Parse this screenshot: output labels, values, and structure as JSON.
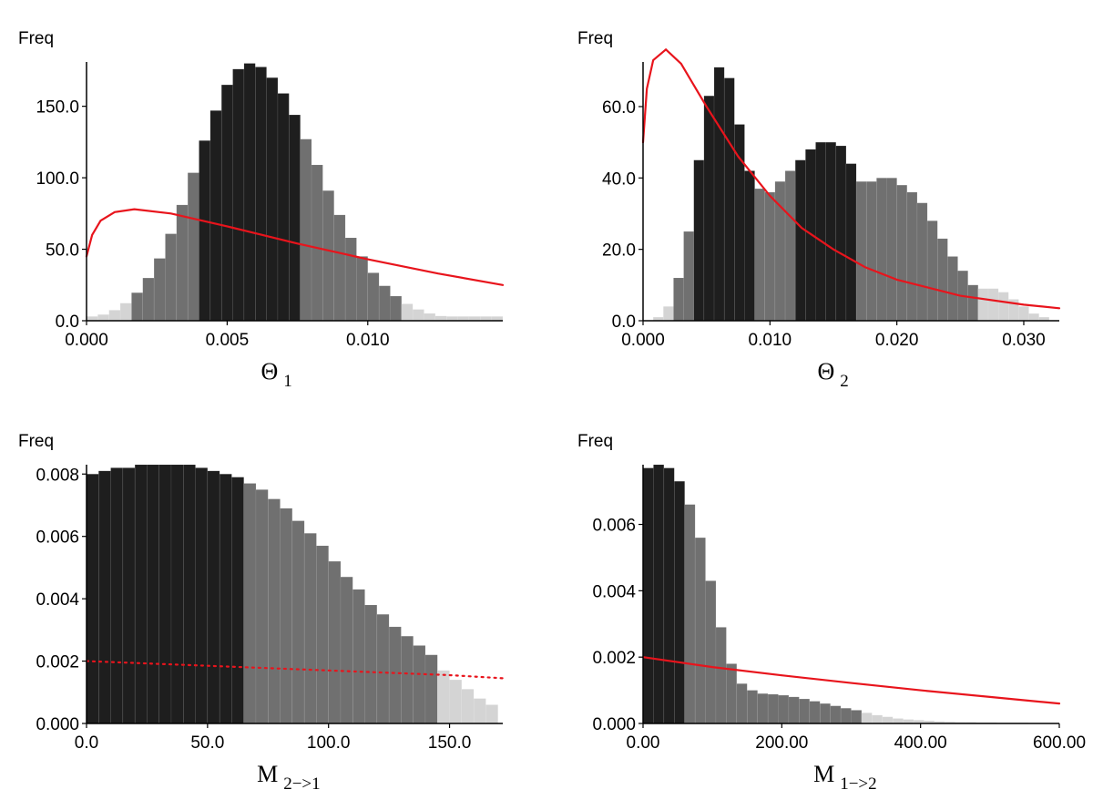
{
  "chart_data": [
    {
      "type": "histogram",
      "ylabel": "Freq",
      "xlabel": "Θ",
      "xlabel_sub": "1",
      "xlim": [
        0,
        0.0148
      ],
      "ylim": [
        0,
        181
      ],
      "xticks": [
        {
          "value": 0,
          "label": "0.000"
        },
        {
          "value": 0.005,
          "label": "0.005"
        },
        {
          "value": 0.01,
          "label": "0.010"
        }
      ],
      "yticks": [
        {
          "value": 0,
          "label": "0.0"
        },
        {
          "value": 50,
          "label": "50.0"
        },
        {
          "value": 100,
          "label": "100.0"
        },
        {
          "value": 150,
          "label": "150.0"
        }
      ],
      "bins": [
        0,
        0.0004,
        0.0008,
        0.0012,
        0.0016,
        0.002,
        0.0024,
        0.0028,
        0.0032,
        0.0036,
        0.004,
        0.0044,
        0.0048,
        0.0052,
        0.0056,
        0.006,
        0.0064,
        0.0068,
        0.0072,
        0.0076,
        0.008,
        0.0084,
        0.0088,
        0.0092,
        0.0096,
        0.01,
        0.0104,
        0.0108,
        0.0112,
        0.0116,
        0.012,
        0.0124,
        0.0128,
        0.0132,
        0.0136,
        0.014,
        0.0144,
        0.0148
      ],
      "values": [
        3,
        4.3,
        7.4,
        12.3,
        19.6,
        29.9,
        43.6,
        60.8,
        81,
        103.5,
        126,
        147,
        165,
        176,
        180,
        177.5,
        170,
        159,
        144,
        127,
        109,
        91,
        74,
        58,
        45,
        33.5,
        24.4,
        17.2,
        11.8,
        7.9,
        5.1,
        3.3,
        3,
        3,
        3,
        3,
        3
      ],
      "bar_colors": [
        "#d4d4d4",
        "#d4d4d4",
        "#d4d4d4",
        "#d4d4d4",
        "#707070",
        "#707070",
        "#707070",
        "#707070",
        "#707070",
        "#707070",
        "#1e1e1e",
        "#1e1e1e",
        "#1e1e1e",
        "#1e1e1e",
        "#1e1e1e",
        "#1e1e1e",
        "#1e1e1e",
        "#1e1e1e",
        "#1e1e1e",
        "#707070",
        "#707070",
        "#707070",
        "#707070",
        "#707070",
        "#707070",
        "#707070",
        "#707070",
        "#707070",
        "#d4d4d4",
        "#d4d4d4",
        "#d4d4d4",
        "#d4d4d4",
        "#d4d4d4",
        "#d4d4d4",
        "#d4d4d4",
        "#d4d4d4",
        "#d4d4d4"
      ],
      "curve": {
        "color": "#e8141c",
        "style": "solid",
        "x": [
          0,
          0.0002,
          0.0005,
          0.001,
          0.0017,
          0.003,
          0.005,
          0.0075,
          0.01,
          0.0125,
          0.0148
        ],
        "values": [
          45,
          60,
          70,
          76,
          78,
          75,
          66,
          54,
          43,
          33,
          25
        ]
      }
    },
    {
      "type": "histogram",
      "ylabel": "Freq",
      "xlabel": "Θ",
      "xlabel_sub": "2",
      "xlim": [
        0,
        0.0328
      ],
      "ylim": [
        0,
        72.5
      ],
      "xticks": [
        {
          "value": 0,
          "label": "0.000"
        },
        {
          "value": 0.01,
          "label": "0.010"
        },
        {
          "value": 0.02,
          "label": "0.020"
        },
        {
          "value": 0.03,
          "label": "0.030"
        }
      ],
      "yticks": [
        {
          "value": 0,
          "label": "0.0"
        },
        {
          "value": 20,
          "label": "20.0"
        },
        {
          "value": 40,
          "label": "40.0"
        },
        {
          "value": 60,
          "label": "60.0"
        }
      ],
      "bins": [
        0,
        0.0008,
        0.0016,
        0.0024,
        0.0032,
        0.004,
        0.0048,
        0.0056,
        0.0064,
        0.0072,
        0.008,
        0.0088,
        0.0096,
        0.0104,
        0.0112,
        0.012,
        0.0128,
        0.0136,
        0.0144,
        0.0152,
        0.016,
        0.0168,
        0.0176,
        0.0184,
        0.0192,
        0.02,
        0.0208,
        0.0216,
        0.0224,
        0.0232,
        0.024,
        0.0248,
        0.0256,
        0.0264,
        0.0272,
        0.028,
        0.0288,
        0.0296,
        0.0304,
        0.0312,
        0.032,
        0.0328
      ],
      "values": [
        0,
        1,
        4,
        12,
        25,
        45,
        63,
        71,
        68,
        55,
        42,
        37,
        36,
        39,
        42,
        45,
        48,
        50,
        50,
        49,
        44,
        39,
        39,
        40,
        40,
        38,
        36,
        33,
        28,
        23,
        18,
        14,
        10,
        9,
        9,
        8,
        6,
        4,
        2,
        1,
        0
      ],
      "bar_colors": [
        "#d4d4d4",
        "#d4d4d4",
        "#d4d4d4",
        "#707070",
        "#707070",
        "#1e1e1e",
        "#1e1e1e",
        "#1e1e1e",
        "#1e1e1e",
        "#1e1e1e",
        "#1e1e1e",
        "#707070",
        "#707070",
        "#707070",
        "#707070",
        "#1e1e1e",
        "#1e1e1e",
        "#1e1e1e",
        "#1e1e1e",
        "#1e1e1e",
        "#1e1e1e",
        "#707070",
        "#707070",
        "#707070",
        "#707070",
        "#707070",
        "#707070",
        "#707070",
        "#707070",
        "#707070",
        "#707070",
        "#707070",
        "#707070",
        "#d4d4d4",
        "#d4d4d4",
        "#d4d4d4",
        "#d4d4d4",
        "#d4d4d4",
        "#d4d4d4",
        "#d4d4d4",
        "#d4d4d4"
      ],
      "curve": {
        "color": "#e8141c",
        "style": "solid",
        "x": [
          0,
          0.0003,
          0.0008,
          0.0018,
          0.003,
          0.005,
          0.0075,
          0.01,
          0.0125,
          0.015,
          0.0175,
          0.02,
          0.025,
          0.03,
          0.0328
        ],
        "values": [
          50,
          65,
          73,
          76,
          72,
          60,
          46,
          35,
          26,
          20,
          15,
          11.5,
          7,
          4.5,
          3.5
        ]
      }
    },
    {
      "type": "histogram",
      "ylabel": "Freq",
      "xlabel": "M",
      "xlabel_sub": "2−>1",
      "xlim": [
        0,
        172
      ],
      "ylim": [
        0,
        0.0083
      ],
      "xticks": [
        {
          "value": 0,
          "label": "0.0"
        },
        {
          "value": 50,
          "label": "50.0"
        },
        {
          "value": 100,
          "label": "100.0"
        },
        {
          "value": 150,
          "label": "150.0"
        }
      ],
      "yticks": [
        {
          "value": 0,
          "label": "0.000"
        },
        0.002,
        0.004,
        0.006,
        0.008
      ],
      "bins": [
        0,
        5,
        10,
        15,
        20,
        25,
        30,
        35,
        40,
        45,
        50,
        55,
        60,
        65,
        70,
        75,
        80,
        85,
        90,
        95,
        100,
        105,
        110,
        115,
        120,
        125,
        130,
        135,
        140,
        145,
        150,
        155,
        160,
        165,
        170
      ],
      "values": [
        0.008,
        0.0081,
        0.0082,
        0.0082,
        0.0083,
        0.0083,
        0.0083,
        0.0083,
        0.0083,
        0.0082,
        0.0081,
        0.008,
        0.0079,
        0.0077,
        0.0075,
        0.0072,
        0.0069,
        0.0065,
        0.0061,
        0.0057,
        0.0052,
        0.0047,
        0.0043,
        0.0038,
        0.0035,
        0.0031,
        0.0028,
        0.0025,
        0.0022,
        0.0017,
        0.0014,
        0.0011,
        0.0008,
        0.0006
      ],
      "bar_colors": [
        "#1e1e1e",
        "#1e1e1e",
        "#1e1e1e",
        "#1e1e1e",
        "#1e1e1e",
        "#1e1e1e",
        "#1e1e1e",
        "#1e1e1e",
        "#1e1e1e",
        "#1e1e1e",
        "#1e1e1e",
        "#1e1e1e",
        "#1e1e1e",
        "#707070",
        "#707070",
        "#707070",
        "#707070",
        "#707070",
        "#707070",
        "#707070",
        "#707070",
        "#707070",
        "#707070",
        "#707070",
        "#707070",
        "#707070",
        "#707070",
        "#707070",
        "#707070",
        "#d4d4d4",
        "#d4d4d4",
        "#d4d4d4",
        "#d4d4d4",
        "#d4d4d4"
      ],
      "curve": {
        "color": "#e8141c",
        "style": "dotted",
        "x": [
          0,
          50,
          100,
          150,
          172
        ],
        "values": [
          0.002,
          0.00185,
          0.0017,
          0.00155,
          0.00145
        ]
      }
    },
    {
      "type": "histogram",
      "ylabel": "Freq",
      "xlabel": "M",
      "xlabel_sub": "1−>2",
      "xlim": [
        0,
        600
      ],
      "ylim": [
        0,
        0.0078
      ],
      "xticks": [
        {
          "value": 0,
          "label": "0.00"
        },
        {
          "value": 200,
          "label": "200.00"
        },
        {
          "value": 400,
          "label": "400.00"
        },
        {
          "value": 600,
          "label": "600.00"
        }
      ],
      "yticks": [
        {
          "value": 0,
          "label": "0.000"
        },
        0.002,
        0.004,
        0.006
      ],
      "bins": [
        0,
        15,
        30,
        45,
        60,
        75,
        90,
        105,
        120,
        135,
        150,
        165,
        180,
        195,
        210,
        225,
        240,
        255,
        270,
        285,
        300,
        315,
        330,
        345,
        360,
        375,
        390,
        405,
        420,
        435,
        450,
        465,
        480,
        495,
        510,
        525,
        540,
        555,
        570,
        585,
        600
      ],
      "values": [
        0.0077,
        0.0078,
        0.0077,
        0.0073,
        0.0066,
        0.0056,
        0.0043,
        0.0029,
        0.0018,
        0.0012,
        0.001,
        0.0009,
        0.00088,
        0.00085,
        0.0008,
        0.00074,
        0.00067,
        0.0006,
        0.00053,
        0.00046,
        0.0004,
        0.00032,
        0.00025,
        0.0002,
        0.00015,
        0.00012,
        0.0001,
        8e-05,
        6e-05,
        5e-05,
        4e-05,
        4e-05,
        3e-05,
        3e-05,
        2e-05,
        2e-05,
        2e-05,
        1e-05,
        1e-05,
        1e-05
      ],
      "bar_colors": [
        "#1e1e1e",
        "#1e1e1e",
        "#1e1e1e",
        "#1e1e1e",
        "#707070",
        "#707070",
        "#707070",
        "#707070",
        "#707070",
        "#707070",
        "#707070",
        "#707070",
        "#707070",
        "#707070",
        "#707070",
        "#707070",
        "#707070",
        "#707070",
        "#707070",
        "#707070",
        "#707070",
        "#d4d4d4",
        "#d4d4d4",
        "#d4d4d4",
        "#d4d4d4",
        "#d4d4d4",
        "#d4d4d4",
        "#d4d4d4",
        "#d4d4d4",
        "#d4d4d4",
        "#d4d4d4",
        "#d4d4d4",
        "#d4d4d4",
        "#d4d4d4",
        "#d4d4d4",
        "#d4d4d4",
        "#d4d4d4",
        "#d4d4d4",
        "#d4d4d4",
        "#d4d4d4"
      ],
      "curve": {
        "color": "#e8141c",
        "style": "solid",
        "x": [
          0,
          100,
          200,
          300,
          400,
          500,
          600
        ],
        "values": [
          0.002,
          0.0017,
          0.00145,
          0.00122,
          0.001,
          0.0008,
          0.0006
        ]
      }
    }
  ]
}
